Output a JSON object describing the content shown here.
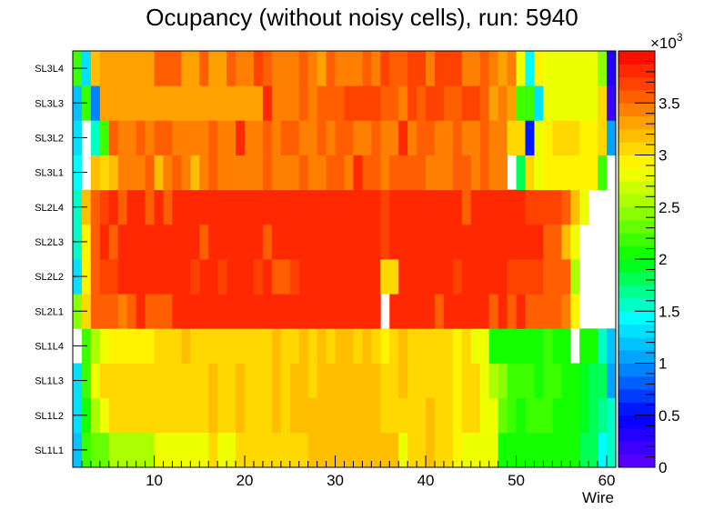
{
  "chart_data": {
    "type": "heatmap",
    "title": "Ocupancy (without noisy cells), run: 5940",
    "xlabel": "Wire",
    "x_range": [
      1,
      61
    ],
    "x_ticks": [
      10,
      20,
      30,
      40,
      50,
      60
    ],
    "y_categories": [
      "SL1L1",
      "SL1L2",
      "SL1L3",
      "SL1L4",
      "SL2L1",
      "SL2L2",
      "SL2L3",
      "SL2L4",
      "SL3L1",
      "SL3L2",
      "SL3L3",
      "SL3L4"
    ],
    "z_range": [
      0,
      4000
    ],
    "z_ticks": [
      0,
      500,
      1000,
      1500,
      2000,
      2500,
      3000,
      3500
    ],
    "z_tick_labels": [
      "0",
      "0.5",
      "1",
      "1.5",
      "2",
      "2.5",
      "3",
      "3.5"
    ],
    "z_exponent_base": "×10",
    "z_exponent_power": "3",
    "layers": [
      {
        "name": "SL1L1",
        "values": [
          1200,
          2200,
          2300,
          2300,
          2500,
          2500,
          2500,
          2500,
          2500,
          2800,
          2800,
          2800,
          2800,
          2800,
          2800,
          3000,
          2800,
          2800,
          3000,
          3000,
          3000,
          3000,
          3000,
          3000,
          3000,
          3000,
          3200,
          3200,
          3200,
          3200,
          3200,
          3200,
          3200,
          3200,
          3200,
          3200,
          2800,
          3000,
          3000,
          3200,
          3000,
          3000,
          2900,
          2800,
          2800,
          2800,
          2800,
          2000,
          2100,
          2100,
          2100,
          2100,
          2100,
          2100,
          2100,
          2100,
          1800,
          1800,
          1400,
          1500
        ]
      },
      {
        "name": "SL1L2",
        "values": [
          1300,
          2100,
          2500,
          2800,
          3000,
          3000,
          3000,
          3000,
          3000,
          3000,
          3000,
          3000,
          3000,
          3000,
          3000,
          3200,
          3000,
          3000,
          3200,
          3000,
          3000,
          3000,
          3200,
          3000,
          3200,
          3200,
          3200,
          3200,
          3200,
          3200,
          3200,
          3200,
          3200,
          3200,
          3000,
          3000,
          3000,
          3000,
          3000,
          3200,
          3000,
          3000,
          2900,
          3000,
          3000,
          2800,
          2800,
          2300,
          2200,
          2100,
          2200,
          2200,
          2200,
          2100,
          2000,
          2000,
          1900,
          1800,
          1700,
          1600
        ]
      },
      {
        "name": "SL1L3",
        "values": [
          1300,
          2200,
          2800,
          3000,
          3100,
          3000,
          3000,
          3000,
          3000,
          3000,
          3000,
          3000,
          3000,
          3000,
          3000,
          3200,
          3000,
          3000,
          3200,
          3000,
          3000,
          3000,
          3200,
          3000,
          3200,
          3200,
          3000,
          3200,
          3200,
          3200,
          3200,
          3200,
          3200,
          3200,
          3000,
          3000,
          3200,
          3000,
          3000,
          3000,
          3000,
          3000,
          2900,
          3000,
          3000,
          2800,
          2500,
          2400,
          2200,
          2200,
          2200,
          2100,
          2200,
          2200,
          2000,
          2000,
          1900,
          1800,
          1800,
          1000
        ]
      },
      {
        "name": "SL1L4",
        "values": [
          0,
          2200,
          2500,
          2800,
          2900,
          2900,
          2900,
          2900,
          2900,
          3000,
          3000,
          3000,
          3200,
          3000,
          3000,
          3100,
          3000,
          3000,
          3100,
          3000,
          3000,
          3000,
          3200,
          3000,
          3000,
          3200,
          3000,
          3200,
          3000,
          3200,
          3200,
          3000,
          3200,
          3000,
          2900,
          3000,
          3200,
          3000,
          3000,
          3000,
          3000,
          3000,
          2900,
          3000,
          2800,
          2800,
          2100,
          2100,
          2100,
          2100,
          2100,
          2100,
          2200,
          2100,
          2000,
          0,
          2000,
          2000,
          1500,
          1200
        ]
      },
      {
        "name": "SL2L1",
        "values": [
          2400,
          3000,
          3500,
          3600,
          3500,
          3400,
          3600,
          3800,
          3600,
          3500,
          3500,
          3800,
          3800,
          3800,
          3800,
          3800,
          3800,
          3800,
          3800,
          3800,
          3800,
          3800,
          3800,
          3800,
          3800,
          3800,
          3800,
          3800,
          3800,
          3800,
          3800,
          3800,
          3800,
          3800,
          0,
          3800,
          3800,
          3800,
          3800,
          3800,
          3600,
          3800,
          3800,
          3800,
          3800,
          3800,
          3600,
          3800,
          3600,
          3800,
          3600,
          3600,
          3500,
          3500,
          3400,
          2900,
          0,
          0,
          0,
          0
        ]
      },
      {
        "name": "SL2L2",
        "values": [
          1300,
          2900,
          3500,
          3700,
          3700,
          3800,
          3800,
          3800,
          3800,
          3800,
          3800,
          3800,
          3800,
          3700,
          3800,
          3800,
          3700,
          3800,
          3800,
          3800,
          3700,
          3800,
          3500,
          3500,
          3700,
          3800,
          3800,
          3800,
          3800,
          3800,
          3800,
          3800,
          3800,
          3800,
          3000,
          3000,
          3800,
          3800,
          3800,
          3800,
          3800,
          3800,
          3700,
          3800,
          3800,
          3800,
          3800,
          3800,
          3700,
          3700,
          3700,
          3700,
          3500,
          3500,
          3500,
          2600,
          0,
          0,
          0,
          0
        ]
      },
      {
        "name": "SL2L3",
        "values": [
          1500,
          2900,
          3600,
          3800,
          3600,
          3800,
          3800,
          3800,
          3800,
          3800,
          3800,
          3800,
          3800,
          3800,
          3600,
          3800,
          3800,
          3800,
          3800,
          3800,
          3800,
          3600,
          3800,
          3800,
          3800,
          3800,
          3800,
          3800,
          3800,
          3800,
          3800,
          3800,
          3800,
          3800,
          3700,
          3800,
          3800,
          3800,
          3800,
          3800,
          3800,
          3800,
          3800,
          3800,
          3800,
          3800,
          3800,
          3800,
          3800,
          3800,
          3800,
          3800,
          3600,
          3600,
          3200,
          2800,
          0,
          0,
          0,
          0
        ]
      },
      {
        "name": "SL2L4",
        "values": [
          1600,
          3200,
          3600,
          3700,
          3800,
          3600,
          3800,
          3800,
          3600,
          3800,
          3600,
          3800,
          3800,
          3800,
          3800,
          3800,
          3800,
          3800,
          3800,
          3800,
          3800,
          3800,
          3800,
          3800,
          3800,
          3800,
          3800,
          3800,
          3800,
          3800,
          3800,
          3800,
          3800,
          3800,
          3700,
          3800,
          3800,
          3800,
          3800,
          3800,
          3800,
          3800,
          3800,
          3600,
          3800,
          3800,
          3800,
          3800,
          3800,
          3800,
          3700,
          3700,
          3700,
          3700,
          3600,
          3200,
          2800,
          0,
          0,
          0
        ]
      },
      {
        "name": "SL3L1",
        "values": [
          1400,
          0,
          3200,
          3000,
          3200,
          3400,
          3400,
          3400,
          3500,
          3200,
          3400,
          3500,
          3400,
          3200,
          3400,
          3500,
          3400,
          3400,
          3400,
          3400,
          3400,
          3500,
          3400,
          3400,
          3400,
          3500,
          3400,
          3400,
          3500,
          3500,
          3400,
          3800,
          3500,
          3500,
          3400,
          3600,
          3500,
          3500,
          3500,
          3400,
          3400,
          3400,
          3500,
          3500,
          3400,
          3500,
          3400,
          3400,
          0,
          1800,
          3000,
          2800,
          2900,
          2900,
          2900,
          2900,
          2900,
          2900,
          2200,
          0
        ]
      },
      {
        "name": "SL3L2",
        "values": [
          1300,
          0,
          1500,
          2200,
          3500,
          3400,
          3400,
          3500,
          3400,
          3500,
          3500,
          3400,
          3400,
          3400,
          3400,
          3500,
          3400,
          3400,
          3800,
          3400,
          3400,
          3500,
          3400,
          3500,
          3500,
          3400,
          3400,
          3500,
          3400,
          3500,
          3500,
          3400,
          3400,
          3500,
          3400,
          3400,
          3800,
          3400,
          3500,
          3500,
          3400,
          3400,
          3500,
          3400,
          3400,
          3500,
          3400,
          3400,
          3000,
          3000,
          500,
          2800,
          2900,
          3000,
          3000,
          3000,
          2900,
          2900,
          3000,
          1000
        ]
      },
      {
        "name": "SL3L3",
        "values": [
          1200,
          2200,
          900,
          3300,
          3300,
          3300,
          3300,
          3300,
          3300,
          3300,
          3300,
          3300,
          3300,
          3300,
          3300,
          3300,
          3300,
          3300,
          3300,
          3300,
          3300,
          3800,
          3400,
          3400,
          3400,
          3600,
          3400,
          3600,
          3500,
          3500,
          3700,
          3700,
          3700,
          3700,
          3500,
          3500,
          3400,
          3700,
          3500,
          3700,
          3700,
          3500,
          3500,
          3700,
          3700,
          3500,
          3300,
          3400,
          3300,
          2200,
          2200,
          1300,
          2800,
          2800,
          2800,
          2800,
          2800,
          2800,
          3000,
          200
        ]
      },
      {
        "name": "SL3L4",
        "values": [
          2200,
          1300,
          3200,
          3300,
          3300,
          3300,
          3300,
          3300,
          3300,
          3600,
          3600,
          3600,
          3300,
          3300,
          3600,
          3300,
          3300,
          3600,
          3400,
          3400,
          3700,
          3600,
          3400,
          3400,
          3400,
          3600,
          3400,
          3300,
          3600,
          3400,
          3400,
          3400,
          3600,
          3400,
          3700,
          3600,
          3600,
          3700,
          3700,
          3400,
          3700,
          3700,
          3700,
          3400,
          3400,
          3600,
          3400,
          3300,
          3400,
          2800,
          1400,
          2900,
          2800,
          2800,
          2800,
          2800,
          2800,
          2800,
          2400,
          300
        ]
      }
    ]
  }
}
